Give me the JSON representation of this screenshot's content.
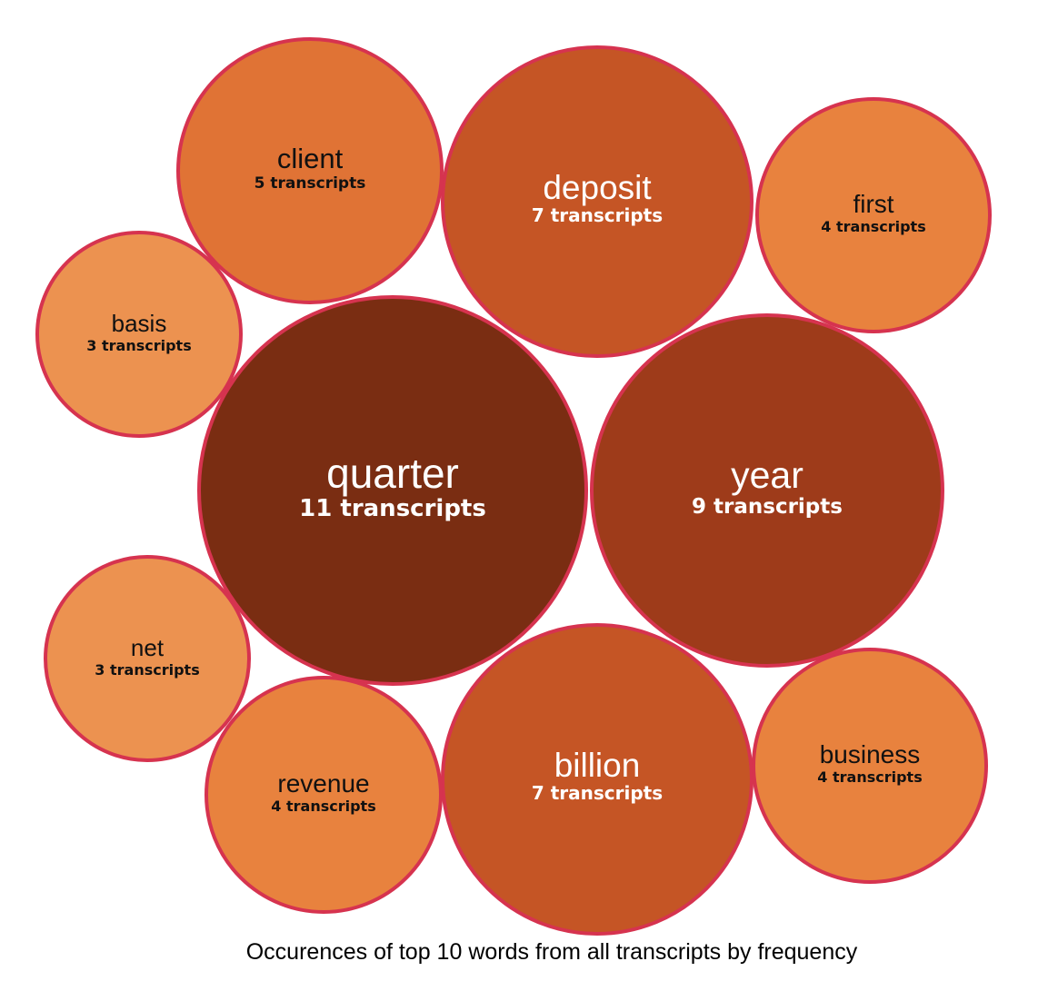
{
  "chart_data": {
    "type": "bubble",
    "title": "Occurences of top 10 words from all transcripts by frequency",
    "count_suffix": "transcripts",
    "stroke_color": "#d6334f",
    "bubbles": [
      {
        "word": "quarter",
        "count": 11,
        "count_label": "11 transcripts",
        "fill": "#7a2d12",
        "text_color": "#ffffff"
      },
      {
        "word": "year",
        "count": 9,
        "count_label": "9 transcripts",
        "fill": "#9e3b1a",
        "text_color": "#ffffff"
      },
      {
        "word": "deposit",
        "count": 7,
        "count_label": "7 transcripts",
        "fill": "#c55525",
        "text_color": "#ffffff"
      },
      {
        "word": "billion",
        "count": 7,
        "count_label": "7 transcripts",
        "fill": "#c55525",
        "text_color": "#ffffff"
      },
      {
        "word": "client",
        "count": 5,
        "count_label": "5 transcripts",
        "fill": "#e07335",
        "text_color": "#111111"
      },
      {
        "word": "first",
        "count": 4,
        "count_label": "4 transcripts",
        "fill": "#e8823e",
        "text_color": "#111111"
      },
      {
        "word": "revenue",
        "count": 4,
        "count_label": "4 transcripts",
        "fill": "#e8823e",
        "text_color": "#111111"
      },
      {
        "word": "business",
        "count": 4,
        "count_label": "4 transcripts",
        "fill": "#e8823e",
        "text_color": "#111111"
      },
      {
        "word": "basis",
        "count": 3,
        "count_label": "3 transcripts",
        "fill": "#ec9250",
        "text_color": "#111111"
      },
      {
        "word": "net",
        "count": 3,
        "count_label": "3 transcripts",
        "fill": "#ec9250",
        "text_color": "#111111"
      }
    ]
  }
}
